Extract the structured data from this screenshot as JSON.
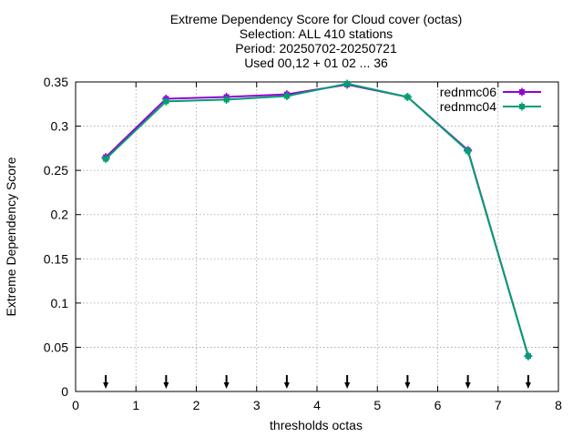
{
  "title_lines": [
    "Extreme Dependency Score  for Cloud cover (octas)",
    "Selection: ALL    410 stations",
    "Period: 20250702-20250721",
    "Used 00,12 + 01 02 ... 36"
  ],
  "chart_data": {
    "type": "line",
    "title": "Extreme Dependency Score  for Cloud cover (octas)",
    "xlabel": "thresholds octas",
    "ylabel": "Extreme Dependency Score",
    "xlim": [
      0,
      8
    ],
    "ylim": [
      0,
      0.35
    ],
    "xticks": [
      0,
      1,
      2,
      3,
      4,
      5,
      6,
      7,
      8
    ],
    "yticks": [
      0,
      0.05,
      0.1,
      0.15,
      0.2,
      0.25,
      0.3,
      0.35
    ],
    "xtick_labels": [
      "0",
      "1",
      "2",
      "3",
      "4",
      "5",
      "6",
      "7",
      "8"
    ],
    "ytick_labels": [
      "0",
      "0.05",
      "0.1",
      "0.15",
      "0.2",
      "0.25",
      "0.3",
      "0.35"
    ],
    "grid": true,
    "legend_position": "top-right",
    "x": [
      0.5,
      1.5,
      2.5,
      3.5,
      4.5,
      5.5,
      6.5,
      7.5
    ],
    "series": [
      {
        "name": "rednmc06",
        "color": "#9400d3",
        "values": [
          0.265,
          0.331,
          0.333,
          0.336,
          0.347,
          0.333,
          0.273,
          0.04
        ]
      },
      {
        "name": "rednmc04",
        "color": "#009e73",
        "values": [
          0.263,
          0.328,
          0.33,
          0.334,
          0.348,
          0.333,
          0.272,
          0.04
        ]
      }
    ],
    "arrow_markers_x": [
      0.5,
      1.5,
      2.5,
      3.5,
      4.5,
      5.5,
      6.5,
      7.5
    ]
  }
}
